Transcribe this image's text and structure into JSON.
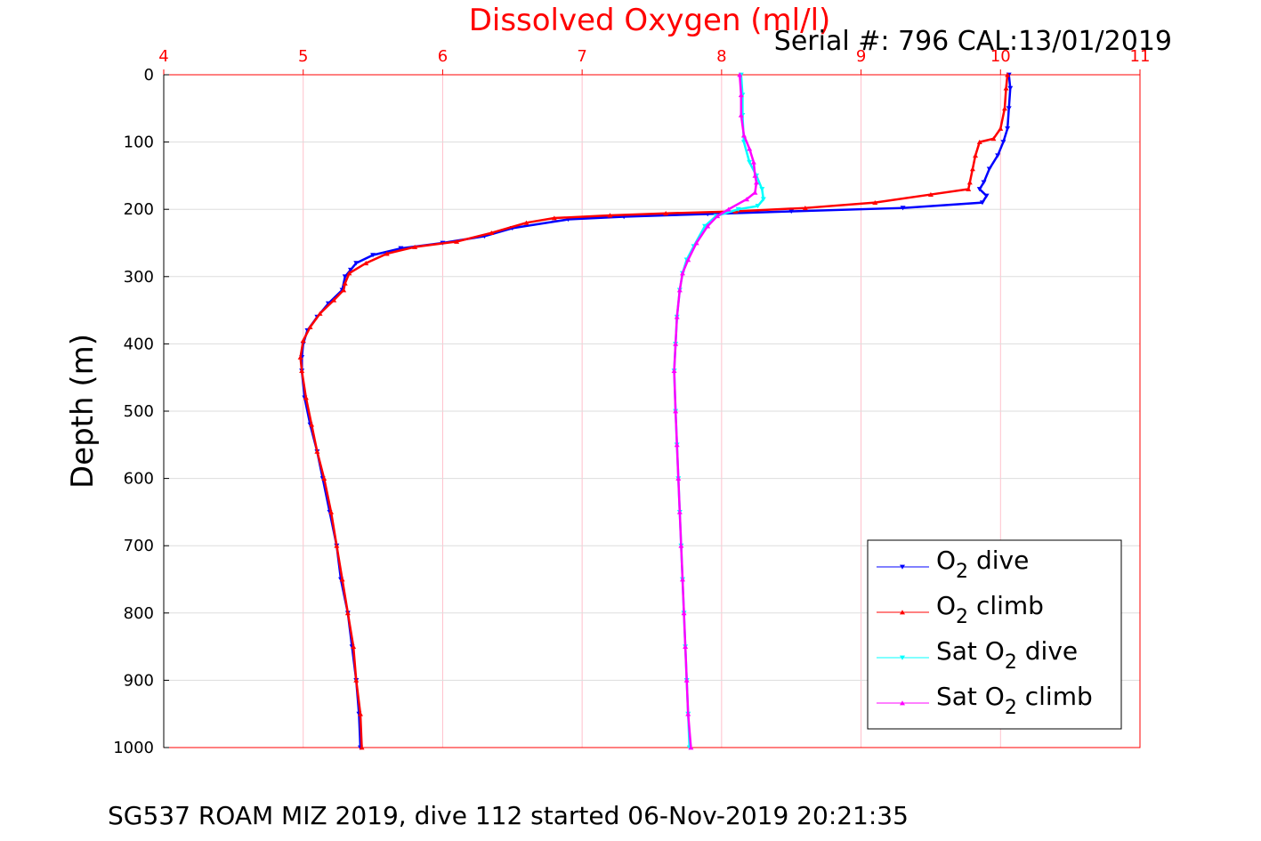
{
  "chart_data": {
    "type": "line",
    "title": "Dissolved Oxygen (ml/l)",
    "annotation": "Serial #: 796  CAL:13/01/2019",
    "caption": "SG537 ROAM MIZ 2019, dive 112 started 06-Nov-2019 20:21:35",
    "xlabel": "Dissolved Oxygen (ml/l)",
    "ylabel": "Depth (m)",
    "xlim": [
      4,
      11
    ],
    "ylim": [
      0,
      1000
    ],
    "y_reversed": true,
    "x_axis_position": "top",
    "grid": true,
    "legend_position": "bottom-right",
    "xticks": [
      "4",
      "5",
      "6",
      "7",
      "8",
      "9",
      "10",
      "11"
    ],
    "yticks": [
      "0",
      "100",
      "200",
      "300",
      "400",
      "500",
      "600",
      "700",
      "800",
      "900",
      "1000"
    ],
    "series": [
      {
        "name": "O2 dive",
        "legend": {
          "base": "O",
          "sub": "2",
          "rest": " dive"
        },
        "color": "#0000ff",
        "marker": "triangle-down",
        "points": [
          [
            10.06,
            0
          ],
          [
            10.07,
            20
          ],
          [
            10.06,
            50
          ],
          [
            10.05,
            80
          ],
          [
            10.02,
            100
          ],
          [
            9.98,
            120
          ],
          [
            9.92,
            140
          ],
          [
            9.88,
            160
          ],
          [
            9.85,
            170
          ],
          [
            9.9,
            180
          ],
          [
            9.87,
            190
          ],
          [
            9.3,
            198
          ],
          [
            8.5,
            203
          ],
          [
            7.9,
            207
          ],
          [
            7.3,
            211
          ],
          [
            6.9,
            215
          ],
          [
            6.5,
            228
          ],
          [
            6.3,
            240
          ],
          [
            6.0,
            250
          ],
          [
            5.7,
            258
          ],
          [
            5.5,
            268
          ],
          [
            5.38,
            280
          ],
          [
            5.34,
            290
          ],
          [
            5.3,
            300
          ],
          [
            5.28,
            320
          ],
          [
            5.18,
            340
          ],
          [
            5.1,
            360
          ],
          [
            5.03,
            380
          ],
          [
            5.0,
            400
          ],
          [
            4.99,
            420
          ],
          [
            4.99,
            440
          ],
          [
            5.01,
            480
          ],
          [
            5.05,
            520
          ],
          [
            5.1,
            560
          ],
          [
            5.14,
            600
          ],
          [
            5.19,
            650
          ],
          [
            5.24,
            700
          ],
          [
            5.27,
            750
          ],
          [
            5.32,
            800
          ],
          [
            5.35,
            850
          ],
          [
            5.38,
            900
          ],
          [
            5.4,
            950
          ],
          [
            5.41,
            1000
          ]
        ]
      },
      {
        "name": "O2 climb",
        "legend": {
          "base": "O",
          "sub": "2",
          "rest": " climb"
        },
        "color": "#ff0000",
        "marker": "triangle-up",
        "points": [
          [
            10.05,
            0
          ],
          [
            10.04,
            20
          ],
          [
            10.03,
            50
          ],
          [
            10.0,
            80
          ],
          [
            9.95,
            95
          ],
          [
            9.85,
            100
          ],
          [
            9.82,
            120
          ],
          [
            9.8,
            140
          ],
          [
            9.78,
            160
          ],
          [
            9.77,
            170
          ],
          [
            9.5,
            178
          ],
          [
            9.1,
            190
          ],
          [
            8.6,
            198
          ],
          [
            8.1,
            203
          ],
          [
            7.6,
            206
          ],
          [
            7.2,
            209
          ],
          [
            6.8,
            213
          ],
          [
            6.6,
            220
          ],
          [
            6.35,
            235
          ],
          [
            6.1,
            248
          ],
          [
            5.8,
            256
          ],
          [
            5.6,
            266
          ],
          [
            5.45,
            280
          ],
          [
            5.33,
            295
          ],
          [
            5.3,
            310
          ],
          [
            5.29,
            320
          ],
          [
            5.22,
            335
          ],
          [
            5.12,
            355
          ],
          [
            5.05,
            375
          ],
          [
            5.0,
            395
          ],
          [
            4.98,
            420
          ],
          [
            4.99,
            440
          ],
          [
            5.02,
            480
          ],
          [
            5.06,
            520
          ],
          [
            5.1,
            560
          ],
          [
            5.15,
            600
          ],
          [
            5.2,
            650
          ],
          [
            5.24,
            700
          ],
          [
            5.28,
            750
          ],
          [
            5.32,
            800
          ],
          [
            5.36,
            850
          ],
          [
            5.38,
            900
          ],
          [
            5.41,
            950
          ],
          [
            5.42,
            1000
          ]
        ]
      },
      {
        "name": "Sat O2 dive",
        "legend": {
          "base": "Sat O",
          "sub": "2",
          "rest": " dive"
        },
        "color": "#00ffff",
        "marker": "triangle-down",
        "points": [
          [
            8.14,
            0
          ],
          [
            8.15,
            30
          ],
          [
            8.15,
            60
          ],
          [
            8.16,
            100
          ],
          [
            8.2,
            130
          ],
          [
            8.25,
            150
          ],
          [
            8.29,
            170
          ],
          [
            8.3,
            185
          ],
          [
            8.26,
            195
          ],
          [
            8.12,
            200
          ],
          [
            7.96,
            210
          ],
          [
            7.88,
            225
          ],
          [
            7.8,
            255
          ],
          [
            7.75,
            275
          ],
          [
            7.72,
            295
          ],
          [
            7.7,
            320
          ],
          [
            7.68,
            360
          ],
          [
            7.67,
            400
          ],
          [
            7.66,
            440
          ],
          [
            7.67,
            500
          ],
          [
            7.68,
            550
          ],
          [
            7.69,
            600
          ],
          [
            7.7,
            650
          ],
          [
            7.71,
            700
          ],
          [
            7.72,
            750
          ],
          [
            7.73,
            800
          ],
          [
            7.74,
            850
          ],
          [
            7.75,
            900
          ],
          [
            7.76,
            950
          ],
          [
            7.77,
            1000
          ]
        ]
      },
      {
        "name": "Sat O2 climb",
        "legend": {
          "base": "Sat O",
          "sub": "2",
          "rest": " climb"
        },
        "color": "#ff00ff",
        "marker": "triangle-up",
        "points": [
          [
            8.13,
            0
          ],
          [
            8.14,
            30
          ],
          [
            8.14,
            60
          ],
          [
            8.16,
            90
          ],
          [
            8.2,
            110
          ],
          [
            8.23,
            130
          ],
          [
            8.24,
            150
          ],
          [
            8.25,
            160
          ],
          [
            8.24,
            175
          ],
          [
            8.18,
            185
          ],
          [
            8.05,
            200
          ],
          [
            7.97,
            210
          ],
          [
            7.9,
            225
          ],
          [
            7.82,
            250
          ],
          [
            7.76,
            275
          ],
          [
            7.72,
            295
          ],
          [
            7.7,
            320
          ],
          [
            7.68,
            360
          ],
          [
            7.67,
            400
          ],
          [
            7.66,
            440
          ],
          [
            7.67,
            500
          ],
          [
            7.68,
            550
          ],
          [
            7.69,
            600
          ],
          [
            7.7,
            650
          ],
          [
            7.71,
            700
          ],
          [
            7.72,
            750
          ],
          [
            7.73,
            800
          ],
          [
            7.74,
            850
          ],
          [
            7.75,
            900
          ],
          [
            7.76,
            950
          ],
          [
            7.78,
            1000
          ]
        ]
      }
    ]
  }
}
